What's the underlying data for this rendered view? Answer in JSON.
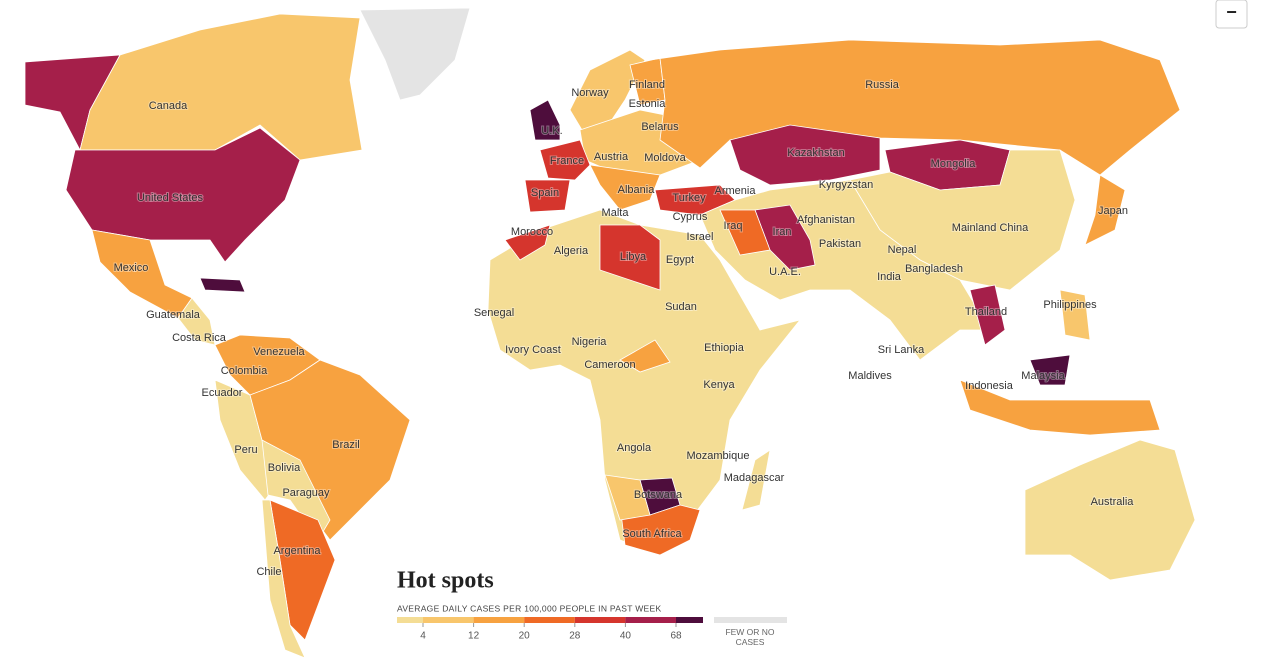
{
  "title": "Hot spots",
  "button": "−",
  "legend": {
    "caption": "AVERAGE DAILY CASES PER 100,000 PEOPLE IN PAST WEEK",
    "ticks": [
      4,
      12,
      20,
      28,
      40,
      68
    ],
    "colors": [
      "#f4dd95",
      "#f8c66c",
      "#f7a240",
      "#ef6a25",
      "#d5352d",
      "#a51f4a",
      "#4e0d3c"
    ],
    "no_data_label": "FEW OR NO CASES",
    "no_data_color": "#e4e4e4"
  },
  "labels": [
    "Canada",
    "Norway",
    "Finland",
    "Estonia",
    "Russia",
    "Belarus",
    "U.K.",
    "France",
    "Austria",
    "Moldova",
    "Kazakhstan",
    "Mongolia",
    "United States",
    "Spain",
    "Albania",
    "Armenia",
    "Kyrgyzstan",
    "Turkey",
    "Malta",
    "Cyprus",
    "Afghanistan",
    "Japan",
    "Mainland China",
    "Morocco",
    "Israel",
    "Iraq",
    "Iran",
    "Pakistan",
    "Algeria",
    "Libya",
    "Egypt",
    "Nepal",
    "U.A.E.",
    "Mexico",
    "Bangladesh",
    "India",
    "Sudan",
    "Philippines",
    "Senegal",
    "Guatemala",
    "Thailand",
    "Costa Rica",
    "Nigeria",
    "Ethiopia",
    "Sri Lanka",
    "Venezuela",
    "Ivory Coast",
    "Cameroon",
    "Colombia",
    "Maldives",
    "Malaysia",
    "Kenya",
    "Indonesia",
    "Ecuador",
    "Brazil",
    "Angola",
    "Peru",
    "Mozambique",
    "Bolivia",
    "Madagascar",
    "Paraguay",
    "Botswana",
    "Australia",
    "South Africa",
    "Argentina",
    "Chile"
  ]
}
